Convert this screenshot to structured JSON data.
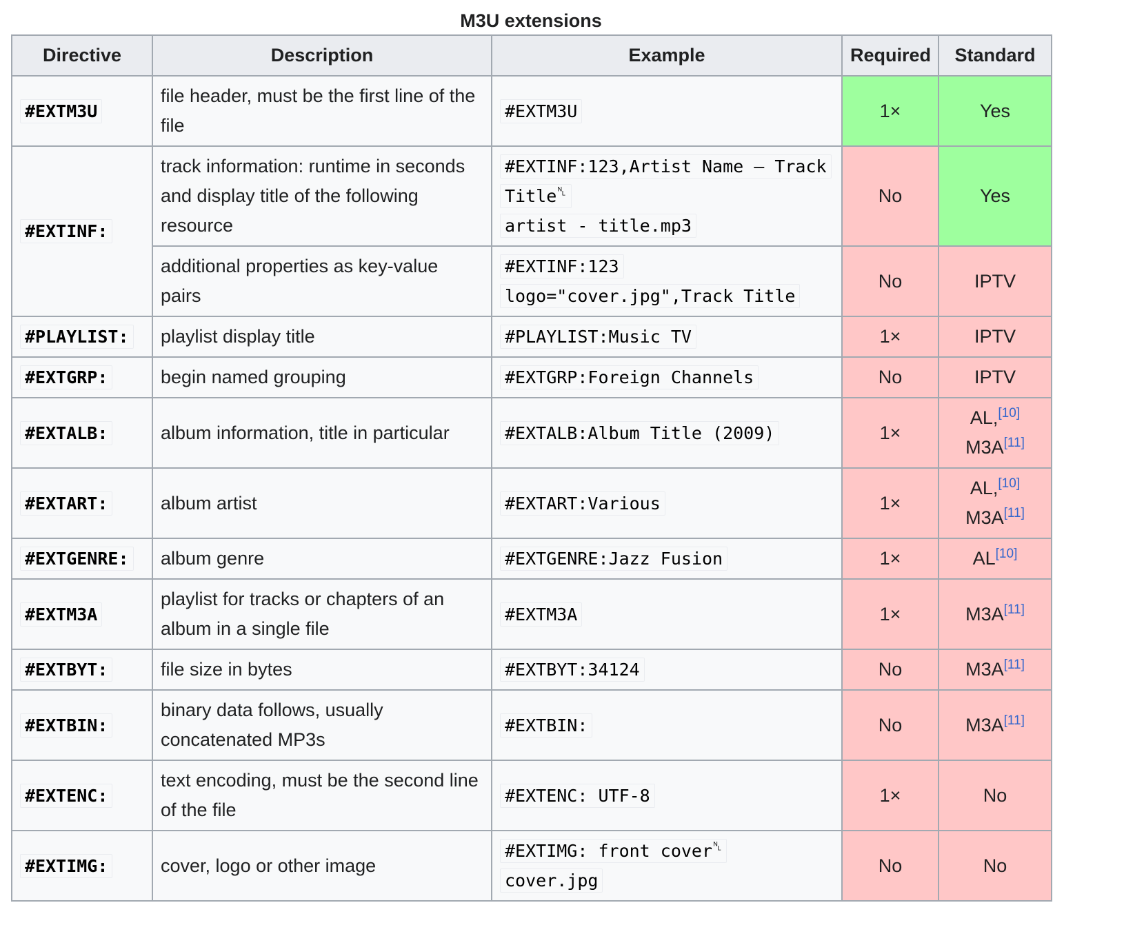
{
  "caption": "M3U extensions",
  "headers": {
    "directive": "Directive",
    "description": "Description",
    "example": "Example",
    "required": "Required",
    "standard": "Standard"
  },
  "newline_symbol": "␤",
  "colors": {
    "yes": "#9eff9e",
    "no": "#ffc7c7",
    "header": "#eaecf0",
    "border": "#a2a9b1",
    "link": "#3366cc"
  },
  "rows": [
    {
      "directive": "#EXTM3U",
      "description": "file header, must be the first line of the file",
      "example": [
        "#EXTM3U"
      ],
      "required": "1×",
      "standard": "Yes"
    },
    {
      "directive": "#EXTINF:",
      "description": "track information: runtime in seconds and display title of the following resource",
      "example": [
        "#EXTINF:123,Artist Name – Track Title",
        "artist - title.mp3"
      ],
      "required": "No",
      "standard": "Yes"
    },
    {
      "description": "additional properties as key-value pairs",
      "example": [
        "#EXTINF:123 logo=\"cover.jpg\",Track Title"
      ],
      "required": "No",
      "standard": "IPTV"
    },
    {
      "directive": "#PLAYLIST:",
      "description": "playlist display title",
      "example": [
        "#PLAYLIST:Music TV"
      ],
      "required": "1×",
      "standard": "IPTV"
    },
    {
      "directive": "#EXTGRP:",
      "description": "begin named grouping",
      "example": [
        "#EXTGRP:Foreign Channels"
      ],
      "required": "No",
      "standard": "IPTV"
    },
    {
      "directive": "#EXTALB:",
      "description": "album information, title in particular",
      "example": [
        "#EXTALB:Album Title (2009)"
      ],
      "required": "1×",
      "standard": "AL,",
      "ref1": "[10]",
      "standard2": "M3A",
      "ref2": "[11]"
    },
    {
      "directive": "#EXTART:",
      "description": "album artist",
      "example": [
        "#EXTART:Various"
      ],
      "required": "1×",
      "standard": "AL,",
      "ref1": "[10]",
      "standard2": "M3A",
      "ref2": "[11]"
    },
    {
      "directive": "#EXTGENRE:",
      "description": "album genre",
      "example": [
        "#EXTGENRE:Jazz Fusion"
      ],
      "required": "1×",
      "standard": "AL",
      "ref1": "[10]"
    },
    {
      "directive": "#EXTM3A",
      "description": "playlist for tracks or chapters of an album in a single file",
      "example": [
        "#EXTM3A"
      ],
      "required": "1×",
      "standard": "M3A",
      "ref1": "[11]"
    },
    {
      "directive": "#EXTBYT:",
      "description": "file size in bytes",
      "example": [
        "#EXTBYT:34124"
      ],
      "required": "No",
      "standard": "M3A",
      "ref1": "[11]"
    },
    {
      "directive": "#EXTBIN:",
      "description": "binary data follows, usually concatenated MP3s",
      "example": [
        "#EXTBIN:"
      ],
      "required": "No",
      "standard": "M3A",
      "ref1": "[11]"
    },
    {
      "directive": "#EXTENC:",
      "description": "text encoding, must be the second line of the file",
      "example": [
        "#EXTENC: UTF-8"
      ],
      "required": "1×",
      "standard": "No"
    },
    {
      "directive": "#EXTIMG:",
      "description": "cover, logo or other image",
      "example": [
        "#EXTIMG: front cover",
        "cover.jpg"
      ],
      "required": "No",
      "standard": "No"
    }
  ]
}
